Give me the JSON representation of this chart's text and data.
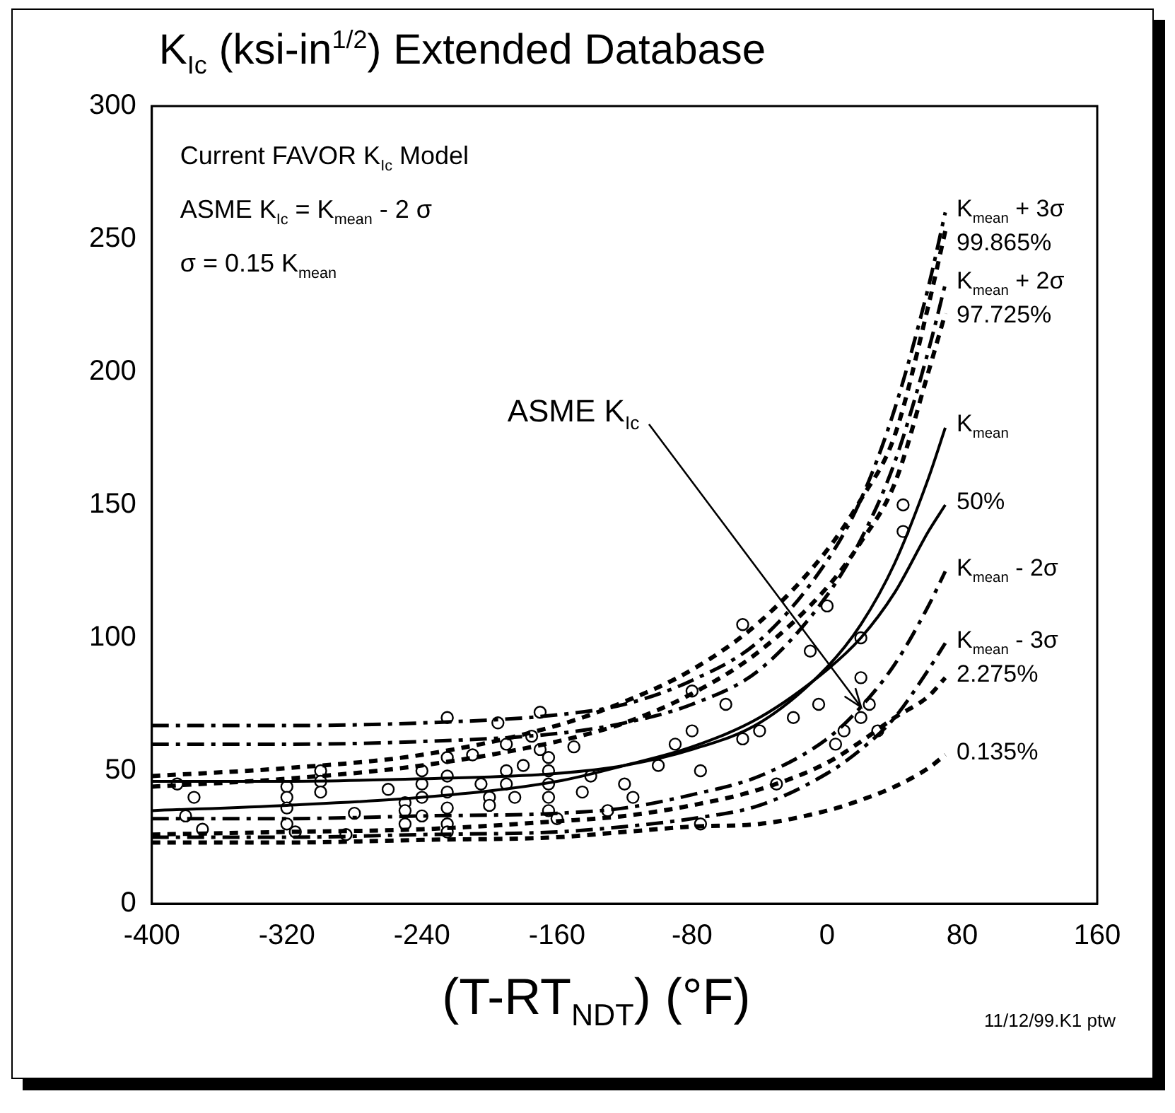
{
  "chart_data": {
    "type": "line",
    "title": "K$_{Ic}$ (ksi-in$^{1/2}$)  Extended Database",
    "xlabel": "(T-RT$_{NDT}$) (°F)",
    "x": [
      -400,
      -320,
      -240,
      -160,
      -120,
      -80,
      -40,
      0,
      20,
      40,
      60,
      70
    ],
    "xlim": [
      -400,
      160
    ],
    "xticks": [
      -400,
      -320,
      -240,
      -160,
      -80,
      0,
      80,
      160
    ],
    "ylim": [
      0,
      300
    ],
    "yticks": [
      0,
      50,
      100,
      150,
      200,
      250,
      300
    ],
    "grid": false,
    "legend": false,
    "marker": "none",
    "series": [
      {
        "name": "K$_{mean}$ + 3σ",
        "color": "#000000",
        "line_style": "dashed",
        "values": [
          67,
          67,
          68,
          71,
          75,
          84,
          99,
          129,
          152,
          186,
          232,
          260
        ]
      },
      {
        "name": "99.865%",
        "color": "#000000",
        "line_style": "dotted",
        "values": [
          48,
          51,
          56,
          67,
          76,
          88,
          106,
          133,
          152,
          176,
          225,
          253
        ]
      },
      {
        "name": "K$_{mean}$ + 2σ",
        "color": "#000000",
        "line_style": "dashed",
        "values": [
          60,
          60,
          61,
          64,
          68,
          75,
          88,
          116,
          137,
          166,
          208,
          233
        ]
      },
      {
        "name": "97.725%",
        "color": "#000000",
        "line_style": "dotted",
        "values": [
          44,
          47,
          52,
          61,
          68,
          79,
          95,
          119,
          136,
          158,
          200,
          222
        ]
      },
      {
        "name": "K$_{mean}$",
        "color": "#000000",
        "line_style": "solid",
        "values": [
          46,
          46,
          47,
          49,
          52,
          58,
          68,
          89,
          105,
          128,
          160,
          179
        ]
      },
      {
        "name": "50%",
        "color": "#000000",
        "line_style": "solid",
        "values": [
          35,
          37,
          40,
          46,
          52,
          59,
          70,
          88,
          100,
          117,
          140,
          150
        ]
      },
      {
        "name": "K$_{mean}$ - 2σ",
        "color": "#000000",
        "line_style": "dashed",
        "values": [
          32,
          32,
          33,
          34,
          36,
          41,
          48,
          62,
          74,
          90,
          112,
          125
        ]
      },
      {
        "name": "K$_{mean}$ - 3σ",
        "color": "#000000",
        "line_style": "dashed",
        "values": [
          25,
          25,
          26,
          27,
          29,
          32,
          37,
          49,
          58,
          70,
          88,
          98
        ]
      },
      {
        "name": "2.275%",
        "color": "#000000",
        "line_style": "dotted",
        "values": [
          26,
          27,
          28,
          31,
          33,
          37,
          43,
          53,
          61,
          70,
          78,
          85
        ]
      },
      {
        "name": "0.135%",
        "color": "#000000",
        "line_style": "dotted",
        "values": [
          23,
          23,
          24,
          25,
          27,
          29,
          30,
          35,
          39,
          44,
          51,
          56
        ]
      },
      {
        "type": "scatter",
        "marker": "circle",
        "color": "#000000",
        "x": [
          -385,
          -380,
          -375,
          -370,
          -320,
          -320,
          -320,
          -320,
          -315,
          -300,
          -300,
          -300,
          -285,
          -280,
          -260,
          -250,
          -250,
          -250,
          -240,
          -240,
          -240,
          -240,
          -225,
          -225,
          -225,
          -225,
          -225,
          -225,
          -225,
          -210,
          -205,
          -200,
          -200,
          -195,
          -190,
          -190,
          -190,
          -185,
          -180,
          -175,
          -170,
          -170,
          -165,
          -165,
          -165,
          -165,
          -165,
          -160,
          -150,
          -145,
          -140,
          -130,
          -120,
          -115,
          -100,
          -90,
          -80,
          -80,
          -75,
          -75,
          -60,
          -50,
          -50,
          -40,
          -30,
          -20,
          -10,
          -5,
          0,
          5,
          10,
          20,
          20,
          25,
          30,
          45,
          45,
          20
        ],
        "values": [
          45,
          33,
          40,
          28,
          44,
          40,
          36,
          30,
          27,
          50,
          46,
          42,
          26,
          34,
          43,
          38,
          30,
          35,
          33,
          40,
          45,
          50,
          70,
          55,
          48,
          42,
          36,
          30,
          27,
          56,
          45,
          40,
          37,
          68,
          60,
          50,
          45,
          40,
          52,
          63,
          72,
          58,
          55,
          50,
          45,
          40,
          35,
          32,
          59,
          42,
          48,
          35,
          45,
          40,
          52,
          60,
          80,
          65,
          50,
          30,
          75,
          105,
          62,
          65,
          45,
          70,
          95,
          75,
          112,
          60,
          65,
          70,
          100,
          75,
          65,
          150,
          140,
          85
        ]
      }
    ],
    "annotations": [
      "Current FAVOR K$_{Ic}$ Model",
      "ASME K$_{Ic}$ = K$_{mean}$ - 2 σ",
      "σ = 0.15 K$_{mean}$",
      {
        "text": "ASME K$_{Ic}$",
        "x": 20,
        "y": 74
      },
      "11/12/99.K1 ptw"
    ]
  }
}
